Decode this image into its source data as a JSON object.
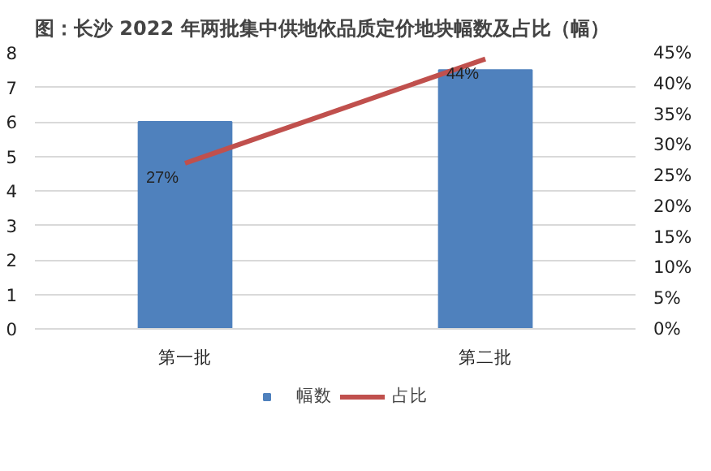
{
  "chart_data": {
    "type": "bar",
    "title": "图：长沙 2022 年两批集中供地依品质定价地块幅数及占比（幅）",
    "categories": [
      "第一批",
      "第二批"
    ],
    "series": [
      {
        "name": "幅数",
        "color": "#4f81bd",
        "values": [
          6,
          7.5
        ]
      },
      {
        "name": "占比",
        "type": "line",
        "axis": "y2",
        "color": "#c0504d",
        "values": [
          27,
          44
        ],
        "value_labels": [
          "27%",
          "44%"
        ]
      }
    ],
    "ylim": [
      0,
      8
    ],
    "yticks": [
      0,
      1,
      2,
      3,
      4,
      5,
      6,
      7,
      8
    ],
    "y2lim": [
      0,
      45
    ],
    "y2ticks": [
      {
        "value": 0,
        "label": "0%"
      },
      {
        "value": 5,
        "label": "5%"
      },
      {
        "value": 10,
        "label": "10%"
      },
      {
        "value": 15,
        "label": "15%"
      },
      {
        "value": 20,
        "label": "20%"
      },
      {
        "value": 25,
        "label": "25%"
      },
      {
        "value": 30,
        "label": "30%"
      },
      {
        "value": 35,
        "label": "35%"
      },
      {
        "value": 40,
        "label": "40%"
      },
      {
        "value": 45,
        "label": "45%"
      }
    ],
    "grid": "y",
    "legend": "bottom"
  }
}
